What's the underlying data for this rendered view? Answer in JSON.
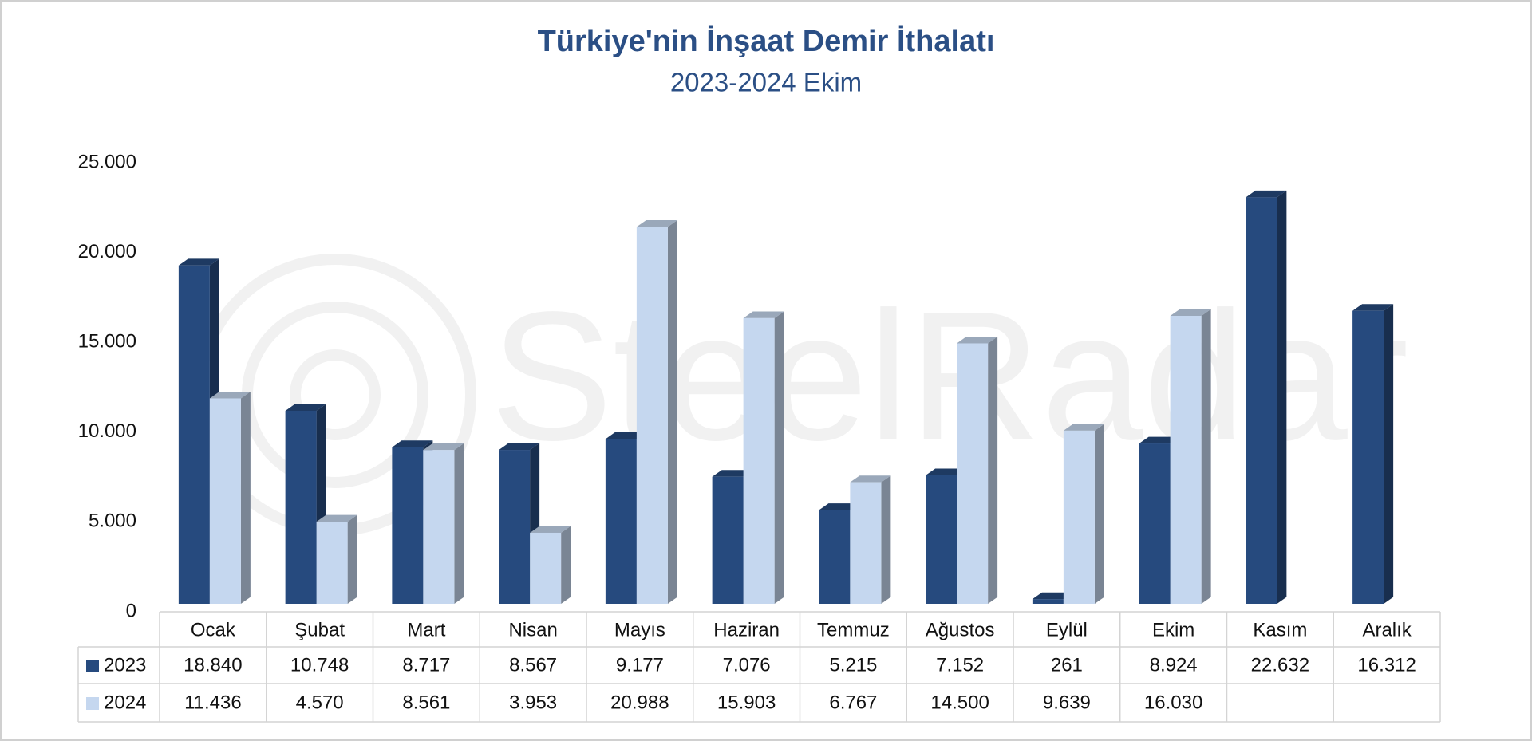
{
  "chart_data": {
    "type": "bar3d",
    "title": "Türkiye'nin İnşaat Demir İthalatı",
    "subtitle": "2023-2024 Ekim",
    "watermark": "SteelRadar",
    "categories": [
      "Ocak",
      "Şubat",
      "Mart",
      "Nisan",
      "Mayıs",
      "Haziran",
      "Temmuz",
      "Ağustos",
      "Eylül",
      "Ekim",
      "Kasım",
      "Aralık"
    ],
    "series": [
      {
        "name": "2023",
        "color": "#264a7e",
        "values": [
          18840,
          10748,
          8717,
          8567,
          9177,
          7076,
          5215,
          7152,
          261,
          8924,
          22632,
          16312
        ],
        "value_labels": [
          "18.840",
          "10.748",
          "8.717",
          "8.567",
          "9.177",
          "7.076",
          "5.215",
          "7.152",
          "261",
          "8.924",
          "22.632",
          "16.312"
        ]
      },
      {
        "name": "2024",
        "color": "#c5d7ef",
        "values": [
          11436,
          4570,
          8561,
          3953,
          20988,
          15903,
          6767,
          14500,
          9639,
          16030,
          null,
          null
        ],
        "value_labels": [
          "11.436",
          "4.570",
          "8.561",
          "3.953",
          "20.988",
          "15.903",
          "6.767",
          "14.500",
          "9.639",
          "16.030",
          null,
          null
        ]
      }
    ],
    "ylim": [
      0,
      25000
    ],
    "yticks": [
      0,
      {
        "value": 5000,
        "label": "5.000"
      },
      {
        "value": 10000,
        "label": "10.000"
      },
      {
        "value": 15000,
        "label": "15.000"
      },
      {
        "value": 20000,
        "label": "20.000"
      },
      {
        "value": 25000,
        "label": "25.000"
      }
    ],
    "grid": false,
    "data_table": true
  }
}
